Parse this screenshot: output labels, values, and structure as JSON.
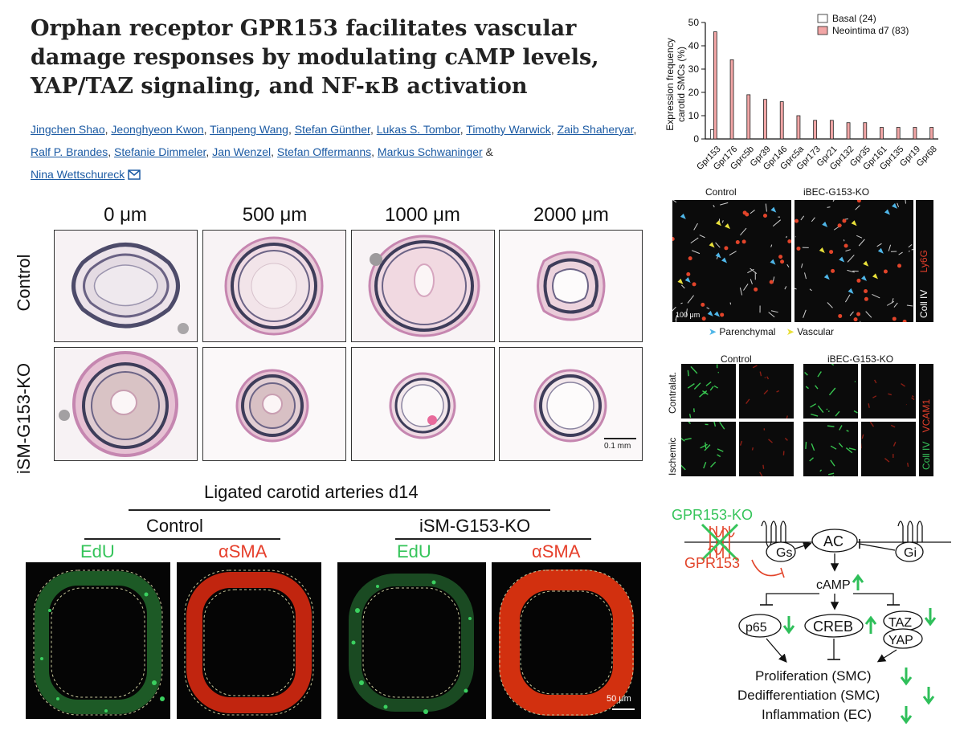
{
  "article": {
    "title": "Orphan receptor GPR153 facilitates vascular damage responses by modulating cAMP levels, YAP/TAZ signaling, and NF-κB activation",
    "authors": [
      "Jingchen Shao",
      "Jeonghyeon Kwon",
      "Tianpeng Wang",
      "Stefan Günther",
      "Lukas S. Tombor",
      "Timothy Warwick",
      "Zaib Shaheryar",
      "Ralf P. Brandes",
      "Stefanie Dimmeler",
      "Jan Wenzel",
      "Stefan Offermanns",
      "Markus Schwaninger",
      "Nina Wettschureck"
    ],
    "separator": ",",
    "last_separator": "&",
    "email_icon": "envelope-icon"
  },
  "histology": {
    "columns": [
      "0 μm",
      "500 μm",
      "1000 μm",
      "2000 μm"
    ],
    "rows": [
      "Control",
      "iSM-G153-KO"
    ],
    "scale_bar": "0.1 mm"
  },
  "ligated": {
    "title": "Ligated carotid arteries d14",
    "groups": [
      "Control",
      "iSM-G153-KO"
    ],
    "stains": [
      "EdU",
      "αSMA",
      "EdU",
      "αSMA"
    ],
    "scale_bar": "50 μm"
  },
  "chart_data": {
    "type": "bar",
    "categories": [
      "Gpr153",
      "Gpr176",
      "Gprc5b",
      "Gpr39",
      "Gpr146",
      "Gprc5a",
      "Gpr173",
      "Gpr21",
      "Gpr132",
      "Gpr35",
      "Gpr161",
      "Gpr135",
      "Gpr19",
      "Gpr68"
    ],
    "series": [
      {
        "name": "Basal (24)",
        "color": "#ffffff",
        "values": [
          4,
          0,
          0,
          0,
          0,
          0,
          0,
          0,
          0,
          0,
          0,
          0,
          0,
          0
        ]
      },
      {
        "name": "Neointima d7 (83)",
        "color": "#f2a6a6",
        "values": [
          46,
          34,
          19,
          17,
          16,
          10,
          8,
          8,
          7,
          7,
          5,
          5,
          5,
          5
        ]
      }
    ],
    "ylabel_line1": "Expression frequency",
    "ylabel_line2": "carotid SMCs (%)",
    "yticks": [
      0,
      10,
      20,
      30,
      40,
      50
    ],
    "ylim": [
      0,
      50
    ],
    "legend_position": "top-right"
  },
  "ly6g_panel": {
    "columns": [
      "Control",
      "iBEC-G153-KO"
    ],
    "side_label_white": "Coll IV",
    "side_label_red": "Ly6G",
    "scale_bar": "100 μm",
    "legend": {
      "parenchymal": "Parenchymal",
      "vascular": "Vascular"
    },
    "arrow_colors": {
      "parenchymal": "#4fb6e8",
      "vascular": "#e8e03a"
    }
  },
  "vcam_panel": {
    "columns": [
      "Control",
      "iBEC-G153-KO"
    ],
    "rows": [
      "Contralat.",
      "Ischemic"
    ],
    "side_label_green": "Coll IV",
    "side_label_red": "VCAM1"
  },
  "diagram": {
    "gpr153_ko": "GPR153-KO",
    "gpr153": "GPR153",
    "gs": "Gs",
    "ac": "AC",
    "gi": "Gi",
    "camp": "cAMP",
    "p65": "p65",
    "creb": "CREB",
    "taz": "TAZ",
    "yap": "YAP",
    "outcome1": "Proliferation (SMC)",
    "outcome2": "Dedifferentiation (SMC)",
    "outcome3": "Inflammation (EC)",
    "colors": {
      "green": "#35c45a",
      "red": "#e2442a",
      "arrow_green": "#2fbf5a"
    }
  }
}
